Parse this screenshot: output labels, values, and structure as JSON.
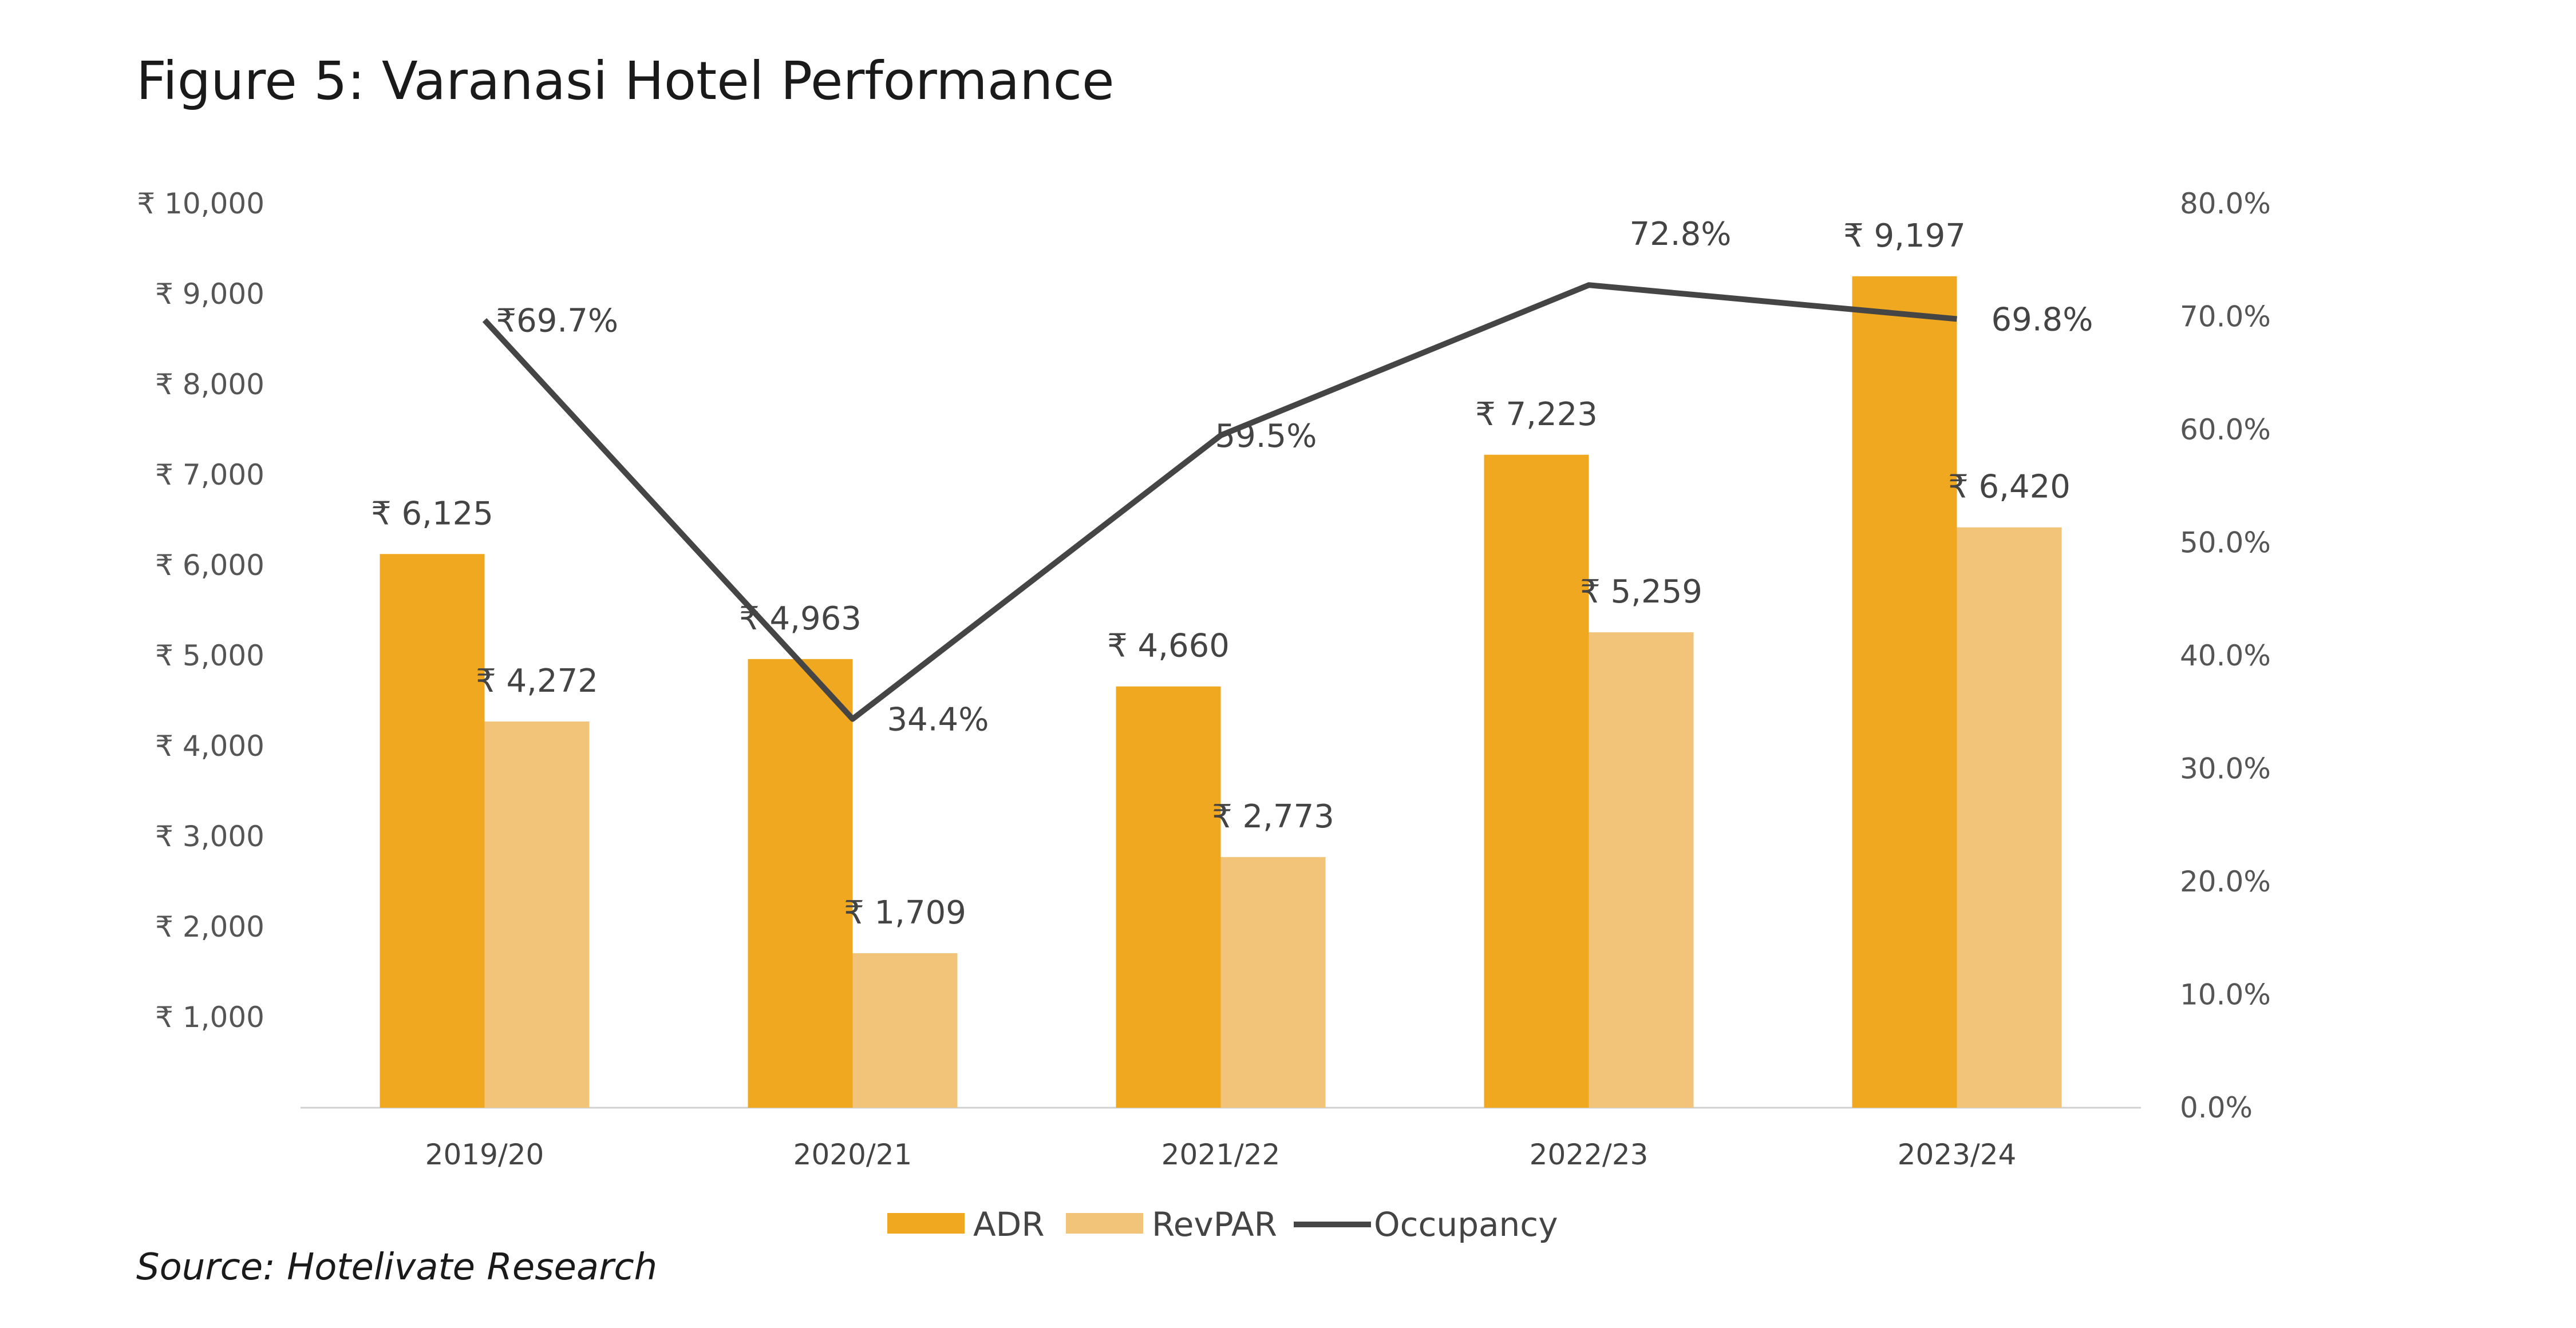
{
  "title": "Figure 5: Varanasi Hotel Performance",
  "source": "Source: Hotelivate Research",
  "colors": {
    "adr": "#F0A820",
    "revpar": "#F2C47A",
    "occupancy": "#454545",
    "axis": "#d0d0d0"
  },
  "chart_data": {
    "type": "bar",
    "categories": [
      "2019/20",
      "2020/21",
      "2021/22",
      "2022/23",
      "2023/24"
    ],
    "series": [
      {
        "name": "ADR",
        "type": "bar",
        "axis": "left",
        "values": [
          6125,
          4963,
          4660,
          7223,
          9197
        ],
        "labels": [
          "₹ 6,125",
          "₹ 4,963",
          "₹ 4,660",
          "₹ 7,223",
          "₹ 9,197"
        ]
      },
      {
        "name": "RevPAR",
        "type": "bar",
        "axis": "left",
        "values": [
          4272,
          1709,
          2773,
          5259,
          6420
        ],
        "labels": [
          "₹ 4,272",
          "₹ 1,709",
          "₹ 2,773",
          "₹ 5,259",
          "₹ 6,420"
        ]
      },
      {
        "name": "Occupancy",
        "type": "line",
        "axis": "right",
        "values": [
          69.7,
          34.4,
          59.5,
          72.8,
          69.8
        ],
        "labels": [
          "₹69.7%",
          "34.4%",
          "59.5%",
          "72.8%",
          "69.8%"
        ]
      }
    ],
    "y_left": {
      "ylim": [
        0,
        10000
      ],
      "tick_labels": [
        "₹ 1,000",
        "₹ 2,000",
        "₹ 3,000",
        "₹ 4,000",
        "₹ 5,000",
        "₹ 6,000",
        "₹ 7,000",
        "₹ 8,000",
        "₹ 9,000",
        "₹ 10,000"
      ]
    },
    "y_right": {
      "ylim": [
        0,
        80
      ],
      "tick_labels": [
        "0.0%",
        "10.0%",
        "20.0%",
        "30.0%",
        "40.0%",
        "50.0%",
        "60.0%",
        "70.0%",
        "80.0%"
      ]
    },
    "grid": false,
    "legend": "bottom"
  }
}
